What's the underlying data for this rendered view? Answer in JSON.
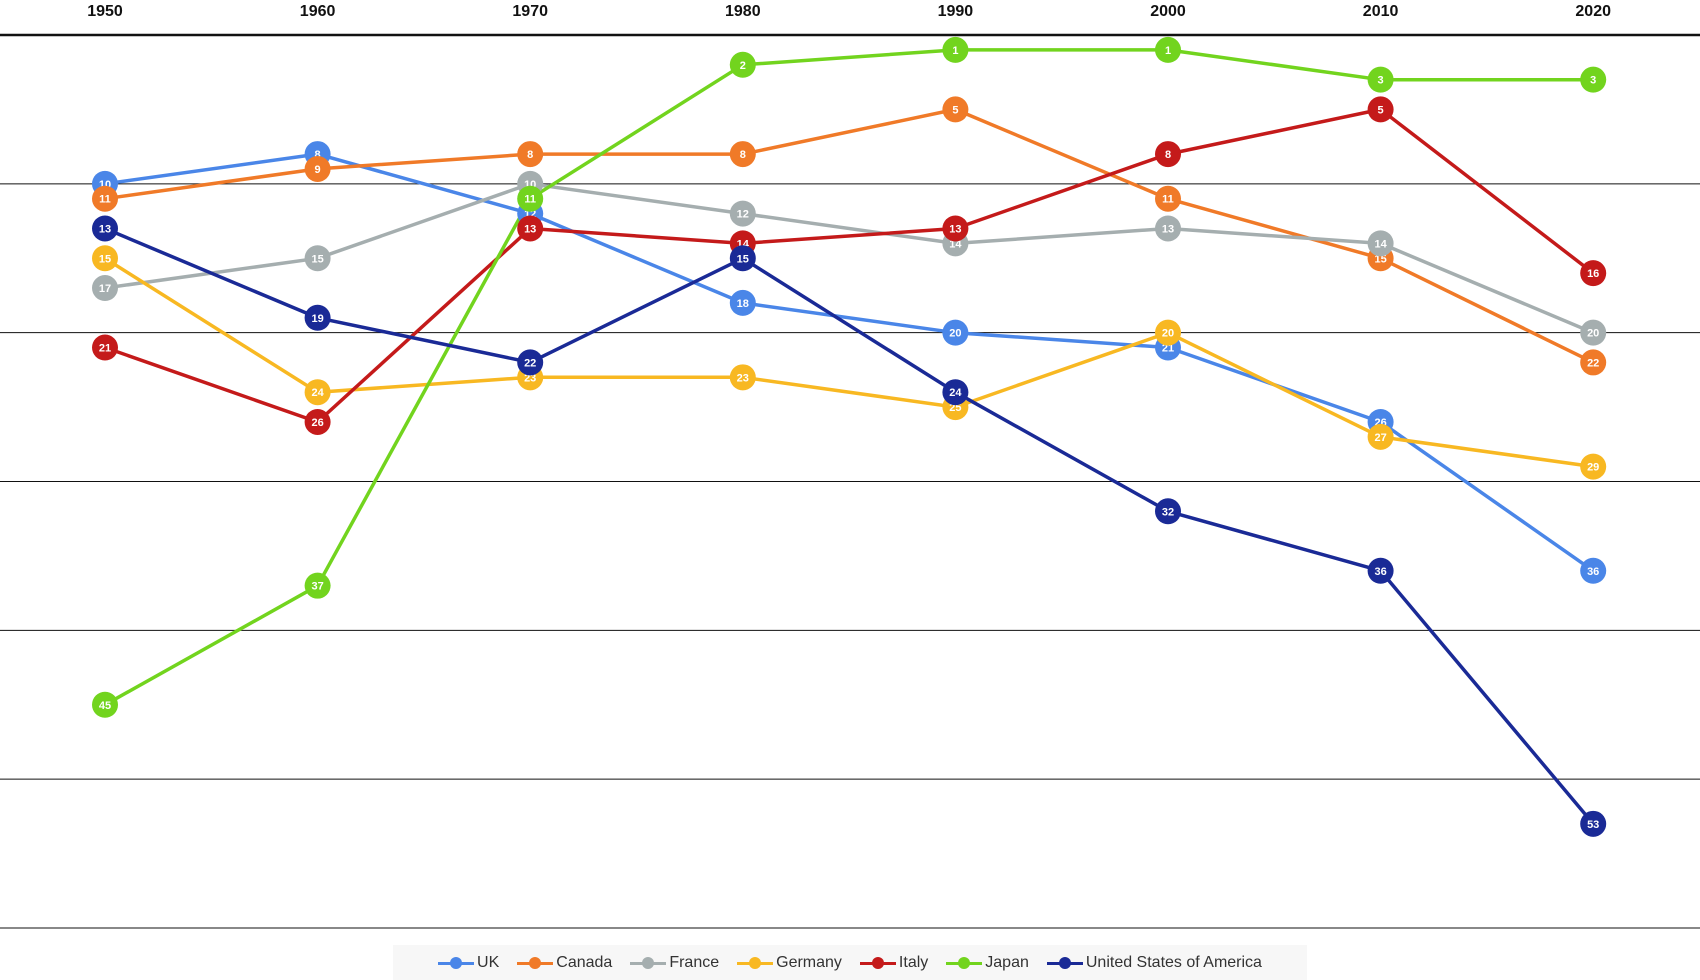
{
  "chart_data": {
    "type": "line",
    "title": "",
    "xlabel": "",
    "ylabel": "",
    "x": [
      "1950",
      "1960",
      "1970",
      "1980",
      "1990",
      "2000",
      "2010",
      "2020"
    ],
    "y_inverted": true,
    "ylim": [
      0,
      60
    ],
    "grid": true,
    "legend_position": "bottom-center",
    "series": [
      {
        "name": "UK",
        "color": "#4a86e8",
        "values": [
          10,
          8,
          12,
          18,
          20,
          21,
          26,
          36
        ]
      },
      {
        "name": "Canada",
        "color": "#f07a28",
        "values": [
          11,
          9,
          8,
          8,
          5,
          11,
          15,
          22
        ]
      },
      {
        "name": "France",
        "color": "#a5aeaf",
        "values": [
          17,
          15,
          10,
          12,
          14,
          13,
          14,
          20
        ]
      },
      {
        "name": "Germany",
        "color": "#f8b822",
        "values": [
          15,
          24,
          23,
          23,
          25,
          20,
          27,
          29
        ]
      },
      {
        "name": "Italy",
        "color": "#c41a1a",
        "values": [
          21,
          26,
          13,
          14,
          13,
          8,
          5,
          16
        ]
      },
      {
        "name": "Japan",
        "color": "#72d41e",
        "values": [
          45,
          37,
          11,
          2,
          1,
          1,
          3,
          3
        ]
      },
      {
        "name": "United States of America",
        "color": "#1a2a96",
        "values": [
          13,
          19,
          22,
          15,
          24,
          32,
          36,
          53
        ]
      }
    ]
  }
}
